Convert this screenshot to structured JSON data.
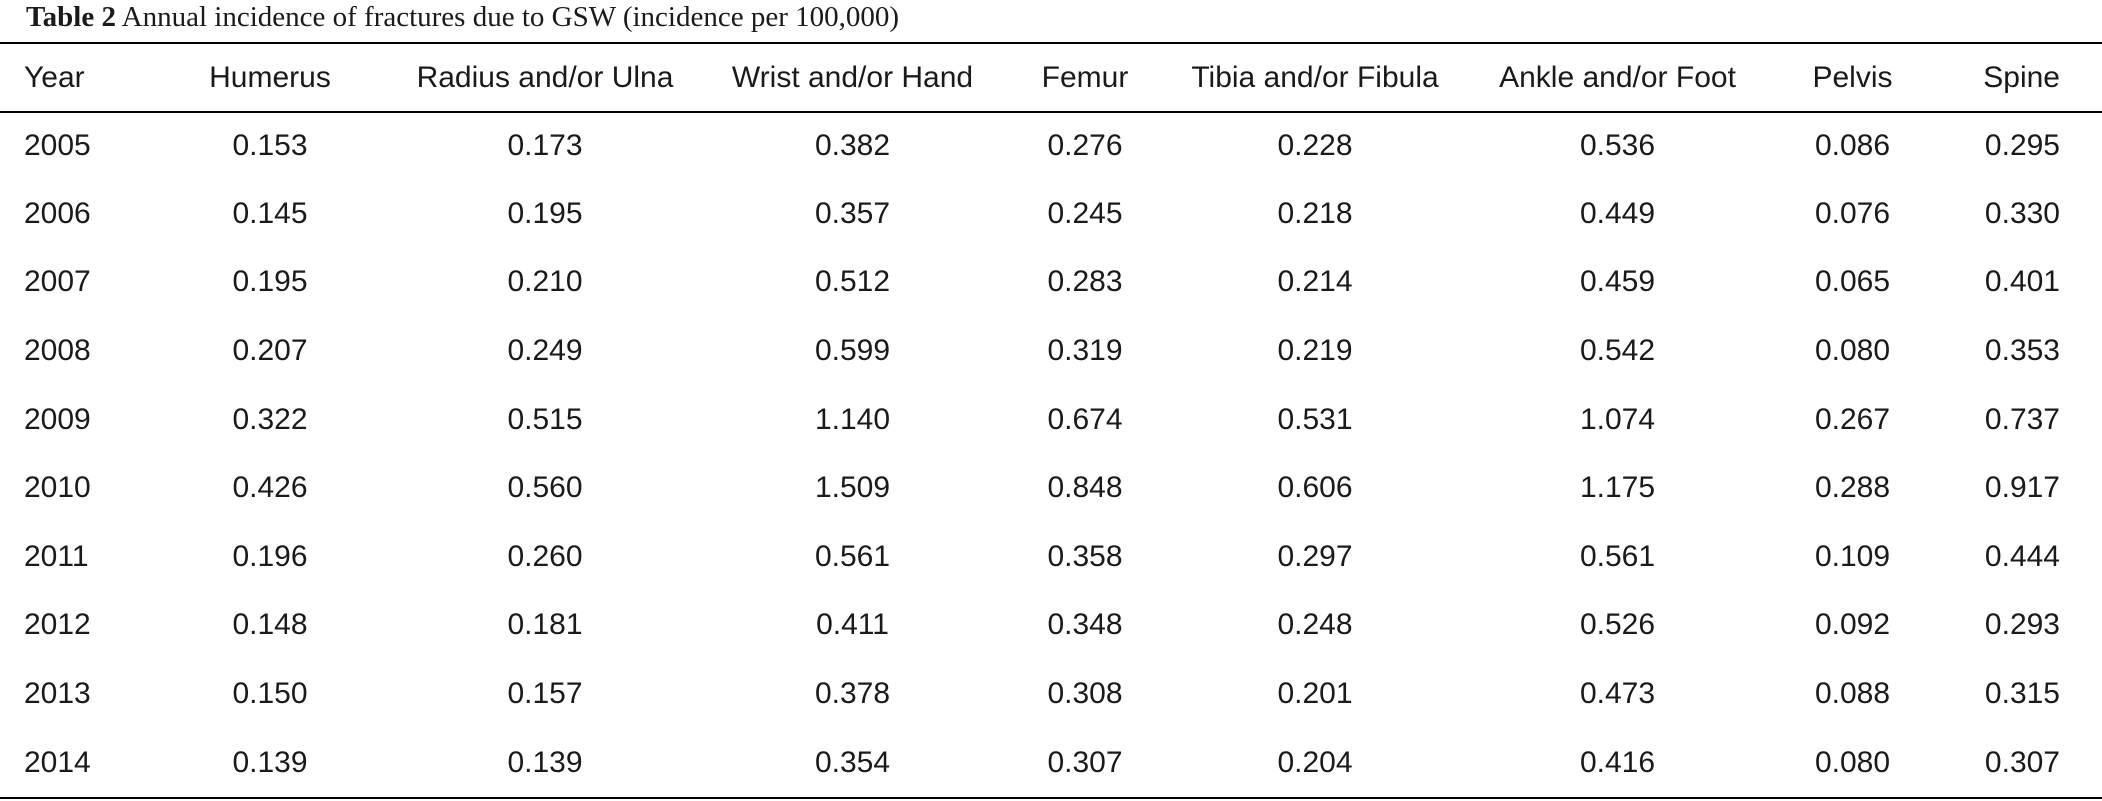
{
  "caption": {
    "label": "Table 2",
    "text": "Annual incidence of fractures due to GSW (incidence per 100,000)"
  },
  "table": {
    "headers": [
      "Year",
      "Humerus",
      "Radius and/or Ulna",
      "Wrist and/or Hand",
      "Femur",
      "Tibia and/or Fibula",
      "Ankle and/or Foot",
      "Pelvis",
      "Spine"
    ],
    "rows": [
      [
        "2005",
        "0.153",
        "0.173",
        "0.382",
        "0.276",
        "0.228",
        "0.536",
        "0.086",
        "0.295"
      ],
      [
        "2006",
        "0.145",
        "0.195",
        "0.357",
        "0.245",
        "0.218",
        "0.449",
        "0.076",
        "0.330"
      ],
      [
        "2007",
        "0.195",
        "0.210",
        "0.512",
        "0.283",
        "0.214",
        "0.459",
        "0.065",
        "0.401"
      ],
      [
        "2008",
        "0.207",
        "0.249",
        "0.599",
        "0.319",
        "0.219",
        "0.542",
        "0.080",
        "0.353"
      ],
      [
        "2009",
        "0.322",
        "0.515",
        "1.140",
        "0.674",
        "0.531",
        "1.074",
        "0.267",
        "0.737"
      ],
      [
        "2010",
        "0.426",
        "0.560",
        "1.509",
        "0.848",
        "0.606",
        "1.175",
        "0.288",
        "0.917"
      ],
      [
        "2011",
        "0.196",
        "0.260",
        "0.561",
        "0.358",
        "0.297",
        "0.561",
        "0.109",
        "0.444"
      ],
      [
        "2012",
        "0.148",
        "0.181",
        "0.411",
        "0.348",
        "0.248",
        "0.526",
        "0.092",
        "0.293"
      ],
      [
        "2013",
        "0.150",
        "0.157",
        "0.378",
        "0.308",
        "0.201",
        "0.473",
        "0.088",
        "0.315"
      ],
      [
        "2014",
        "0.139",
        "0.139",
        "0.354",
        "0.307",
        "0.204",
        "0.416",
        "0.080",
        "0.307"
      ]
    ]
  }
}
